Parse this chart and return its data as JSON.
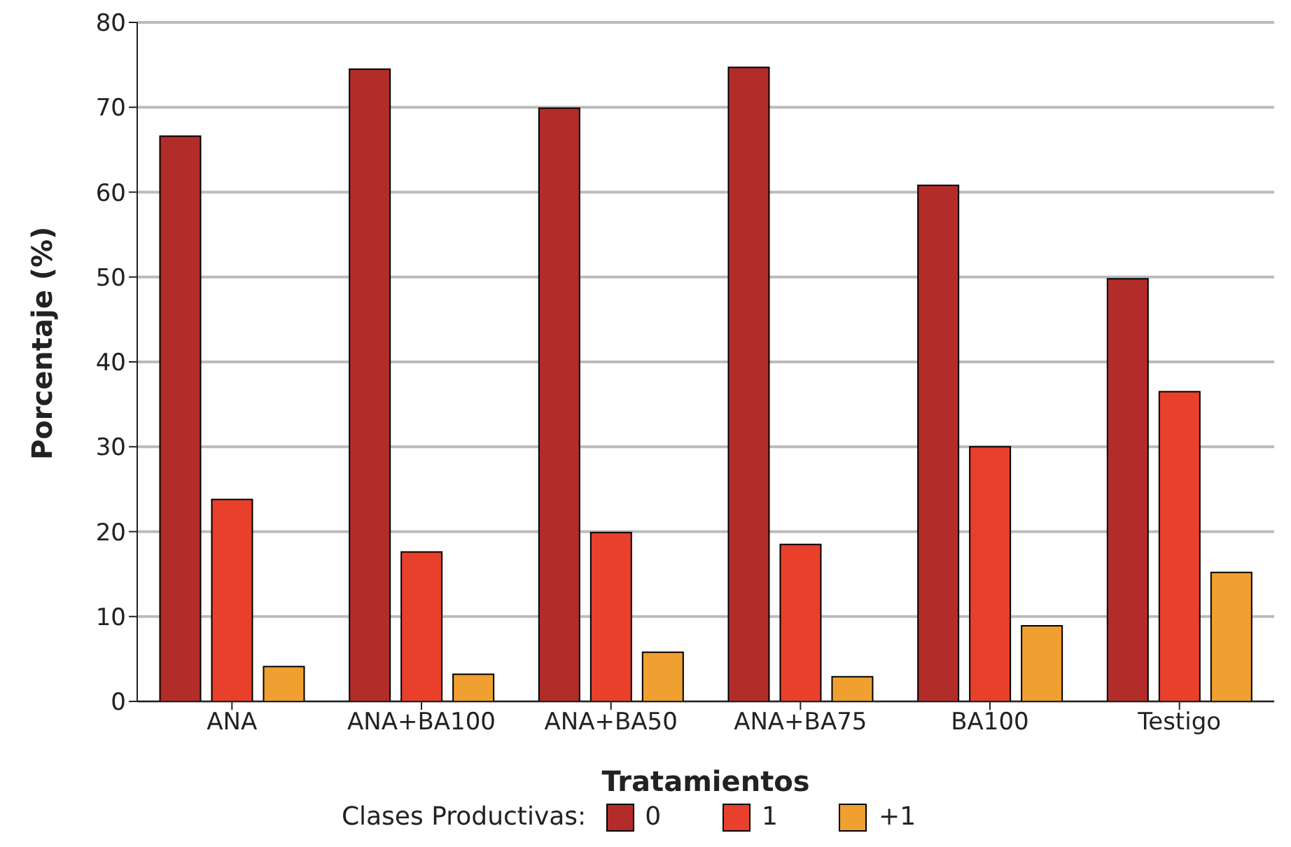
{
  "chart_data": {
    "type": "bar",
    "xlabel": "Tratamientos",
    "ylabel": "Porcentaje (%)",
    "legend_title": "Clases Productivas:",
    "legend": "bottom",
    "grid": "y",
    "categories": [
      "ANA",
      "ANA+BA100",
      "ANA+BA50",
      "ANA+BA75",
      "BA100",
      "Testigo"
    ],
    "series": [
      {
        "name": "0",
        "color": "#b22d2a",
        "values": [
          66.6,
          74.5,
          69.9,
          74.7,
          60.8,
          49.8
        ]
      },
      {
        "name": "1",
        "color": "#e8402a",
        "values": [
          23.8,
          17.6,
          19.9,
          18.5,
          30.0,
          36.5
        ]
      },
      {
        "name": "+1",
        "color": "#f0a030",
        "values": [
          4.1,
          3.2,
          5.8,
          2.9,
          8.9,
          15.2
        ]
      }
    ],
    "ylim": [
      0,
      80
    ],
    "yticks": [
      0,
      10,
      20,
      30,
      40,
      50,
      60,
      70,
      80
    ]
  }
}
